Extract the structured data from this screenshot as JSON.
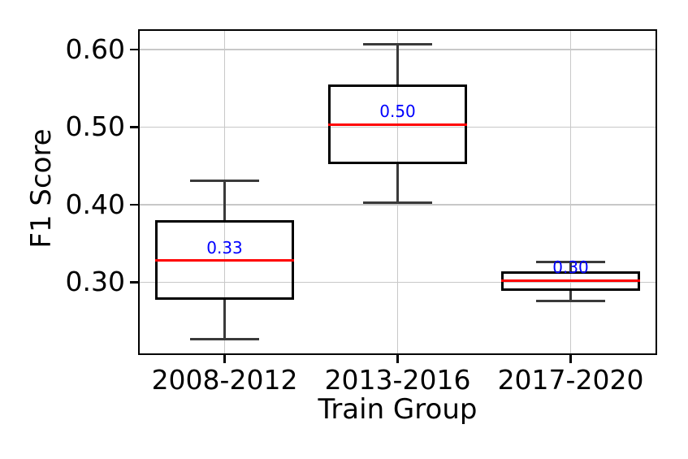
{
  "chart_data": {
    "type": "box",
    "title": "",
    "xlabel": "Train Group",
    "ylabel": "F1 Score",
    "categories": [
      "2008-2012",
      "2013-2016",
      "2017-2020"
    ],
    "boxes": [
      {
        "category": "2008-2012",
        "whisker_low": 0.226,
        "q1": 0.277,
        "median": 0.328,
        "q3": 0.38,
        "whisker_high": 0.431,
        "median_label": "0.33"
      },
      {
        "category": "2013-2016",
        "whisker_low": 0.402,
        "q1": 0.452,
        "median": 0.503,
        "q3": 0.555,
        "whisker_high": 0.607,
        "median_label": "0.50"
      },
      {
        "category": "2017-2020",
        "whisker_low": 0.276,
        "q1": 0.289,
        "median": 0.302,
        "q3": 0.314,
        "whisker_high": 0.326,
        "median_label": "0.30"
      }
    ],
    "yticks": [
      {
        "value": 0.3,
        "label": "0.30"
      },
      {
        "value": 0.4,
        "label": "0.40"
      },
      {
        "value": 0.5,
        "label": "0.50"
      },
      {
        "value": 0.6,
        "label": "0.60"
      }
    ],
    "ylim": [
      0.206,
      0.626
    ],
    "xlim": [
      0.5,
      3.5
    ],
    "grid": true,
    "legend": "none",
    "box_width": 0.8,
    "cap_width": 0.4,
    "colors": {
      "median_line": "#ff0000",
      "median_label": "#0000ff",
      "box_edge": "#000000",
      "whisker": "#3a3a3a",
      "grid": "#c8c8c8",
      "spine": "#000000",
      "text": "#000000",
      "background": "#ffffff"
    }
  }
}
